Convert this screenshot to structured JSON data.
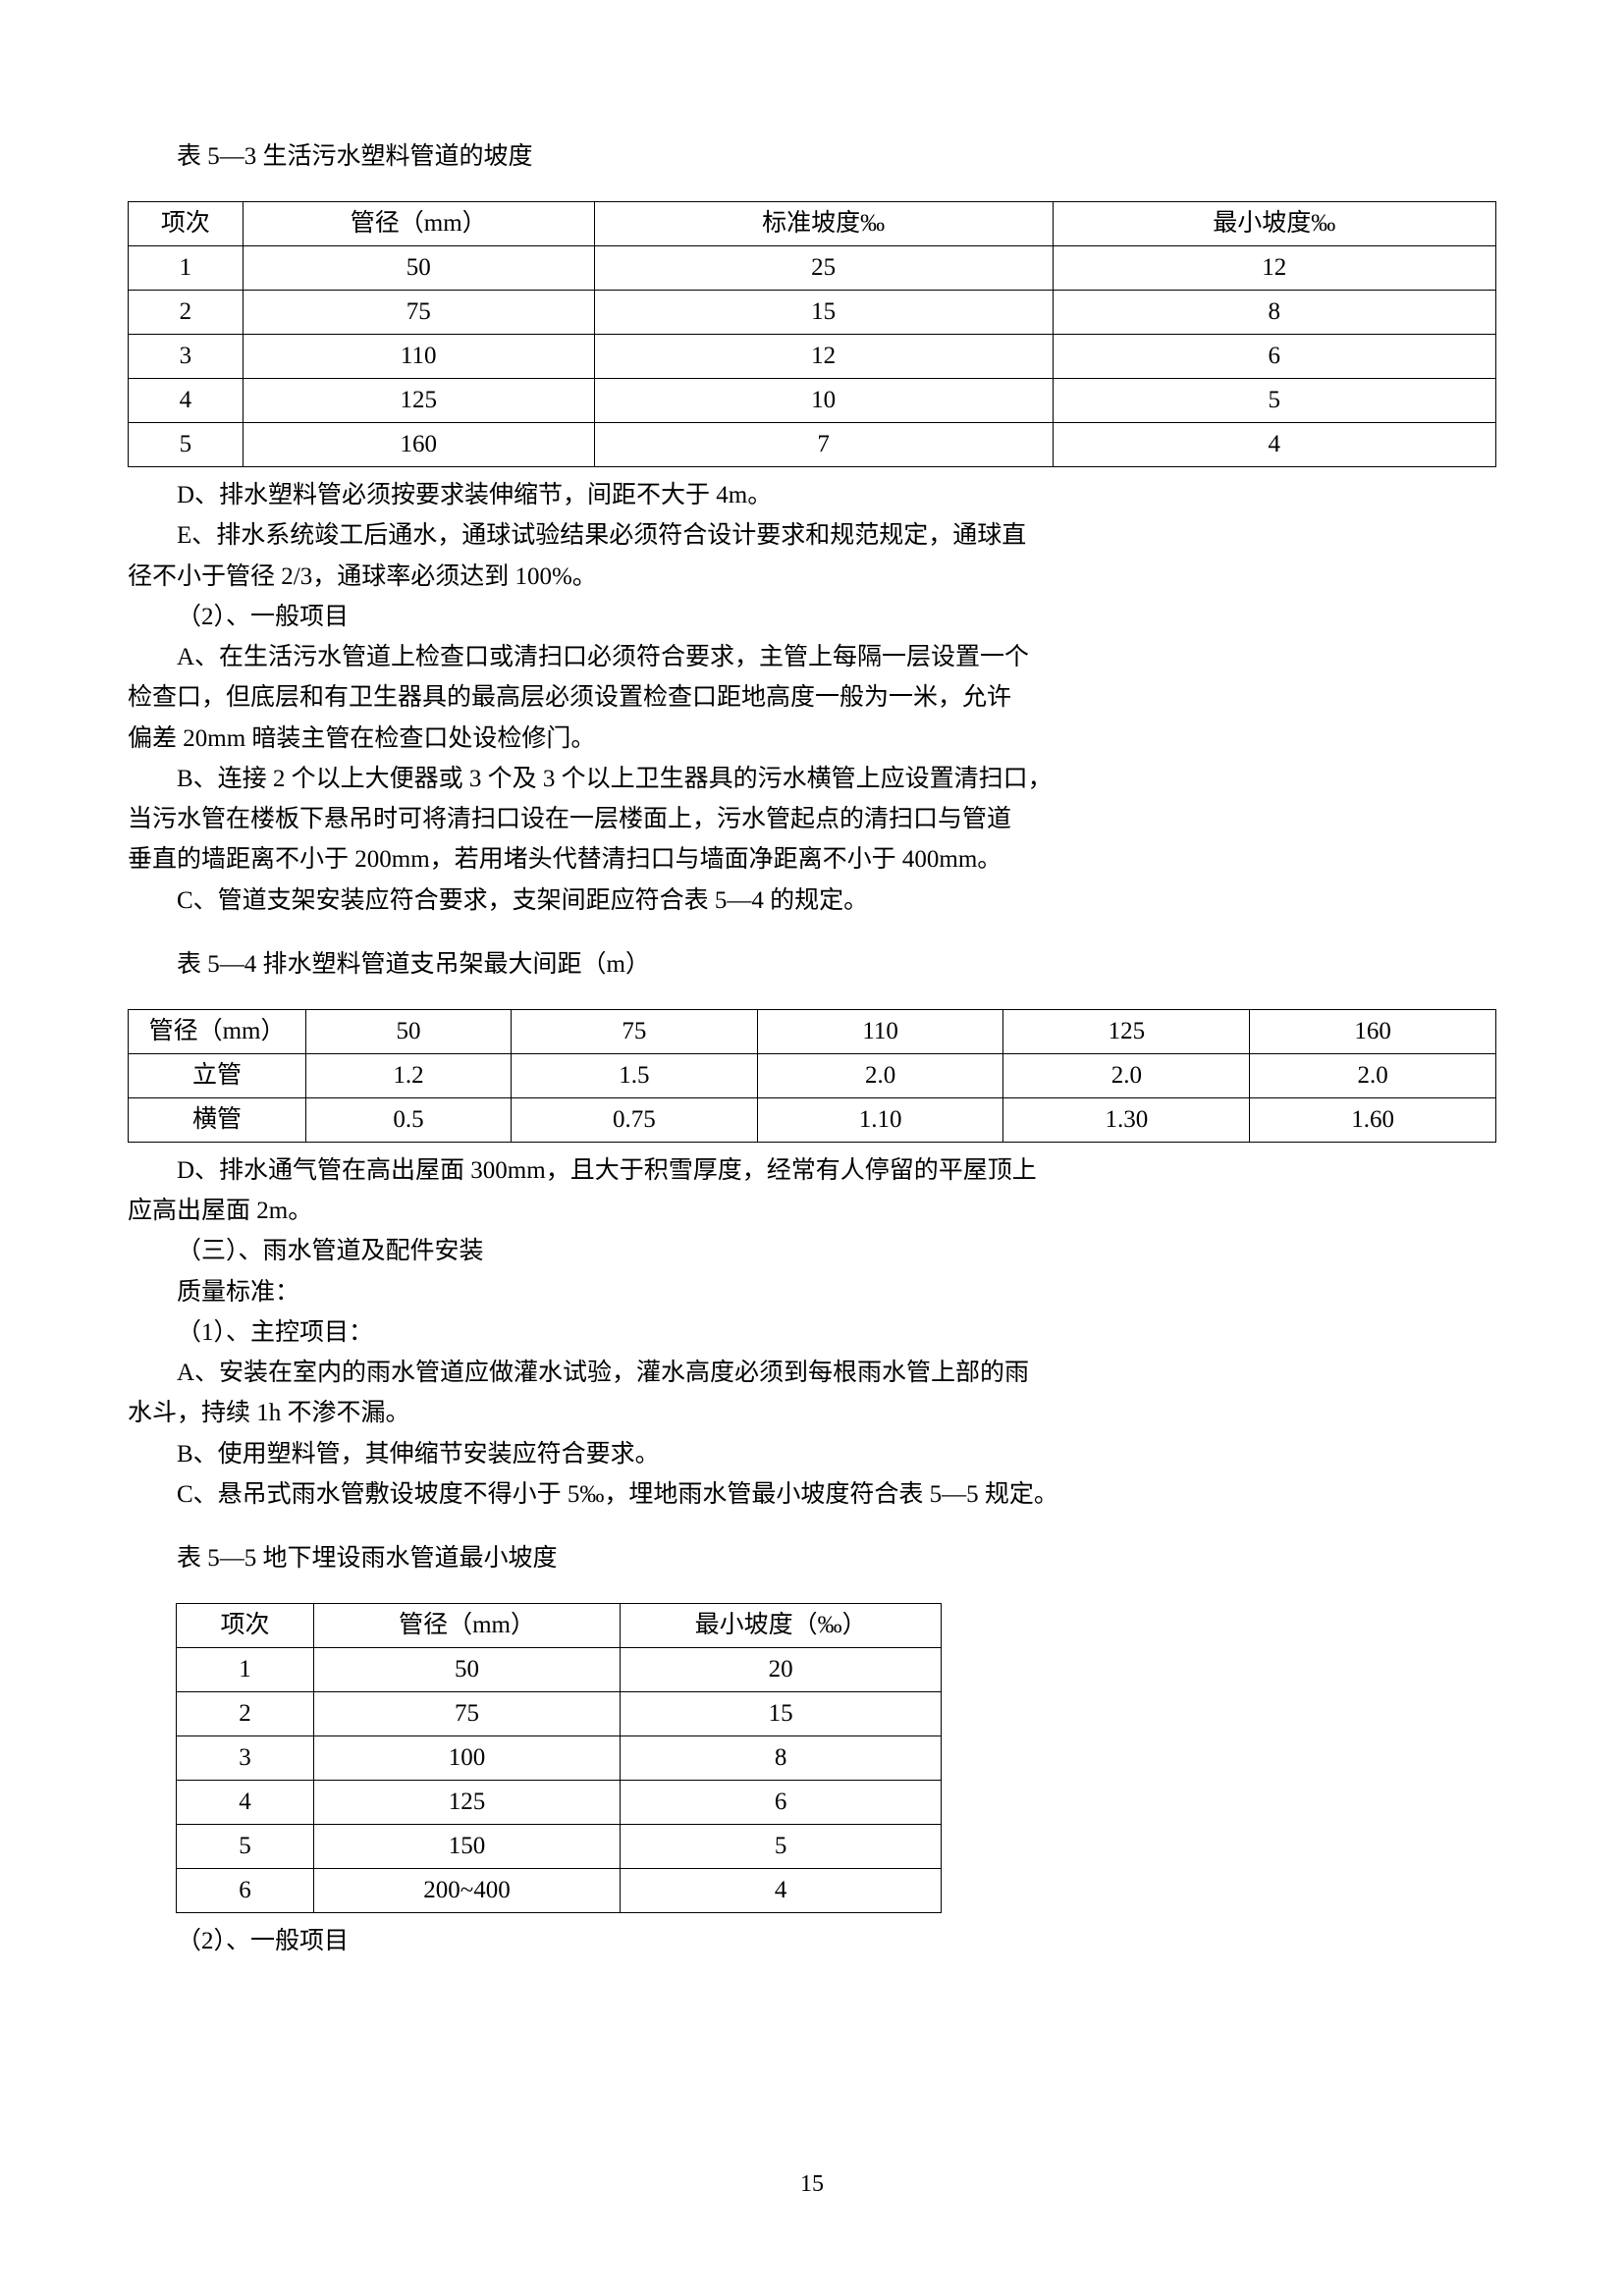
{
  "table53_caption": "表 5—3 生活污水塑料管道的坡度",
  "table53": {
    "headers": [
      "项次",
      "管径（mm）",
      "标准坡度‰",
      "最小坡度‰"
    ],
    "rows": [
      [
        "1",
        "50",
        "25",
        "12"
      ],
      [
        "2",
        "75",
        "15",
        "8"
      ],
      [
        "3",
        "110",
        "12",
        "6"
      ],
      [
        "4",
        "125",
        "10",
        "5"
      ],
      [
        "5",
        "160",
        "7",
        "4"
      ]
    ]
  },
  "para_d1": "D、排水塑料管必须按要求装伸缩节，间距不大于 4m。",
  "para_e1a": "E、排水系统竣工后通水，通球试验结果必须符合设计要求和规范规定，通球直",
  "para_e1b": "径不小于管径 2/3，通球率必须达到 100%。",
  "para_s2": "（2）、一般项目",
  "para_a1a": "A、在生活污水管道上检查口或清扫口必须符合要求，主管上每隔一层设置一个",
  "para_a1b": "检查口，但底层和有卫生器具的最高层必须设置检查口距地高度一般为一米，允许",
  "para_a1c": "偏差 20mm 暗装主管在检查口处设检修门。",
  "para_b1a": "B、连接 2 个以上大便器或 3 个及 3 个以上卫生器具的污水横管上应设置清扫口，",
  "para_b1b": "当污水管在楼板下悬吊时可将清扫口设在一层楼面上，污水管起点的清扫口与管道",
  "para_b1c": "垂直的墙距离不小于 200mm，若用堵头代替清扫口与墙面净距离不小于 400mm。",
  "para_c1": "C、管道支架安装应符合要求，支架间距应符合表 5—4 的规定。",
  "table54_caption": "表 5—4 排水塑料管道支吊架最大间距（m）",
  "table54": {
    "rows": [
      [
        "管径（mm）",
        "50",
        "75",
        "110",
        "125",
        "160"
      ],
      [
        "立管",
        "1.2",
        "1.5",
        "2.0",
        "2.0",
        "2.0"
      ],
      [
        "横管",
        "0.5",
        "0.75",
        "1.10",
        "1.30",
        "1.60"
      ]
    ]
  },
  "para_d2a": "D、排水通气管在高出屋面 300mm，且大于积雪厚度，经常有人停留的平屋顶上",
  "para_d2b": "应高出屋面 2m。",
  "para_sec3": "（三）、雨水管道及配件安装",
  "para_qual": "质量标准：",
  "para_s1": "（1）、主控项目：",
  "para_a2a": "A、安装在室内的雨水管道应做灌水试验，灌水高度必须到每根雨水管上部的雨",
  "para_a2b": "水斗，持续 1h 不渗不漏。",
  "para_b2": "B、使用塑料管，其伸缩节安装应符合要求。",
  "para_c2": "C、悬吊式雨水管敷设坡度不得小于 5‰，埋地雨水管最小坡度符合表 5—5 规定。",
  "table55_caption": "表 5—5 地下埋设雨水管道最小坡度",
  "table55": {
    "headers": [
      "项次",
      "管径（mm）",
      "最小坡度（‰）"
    ],
    "rows": [
      [
        "1",
        "50",
        "20"
      ],
      [
        "2",
        "75",
        "15"
      ],
      [
        "3",
        "100",
        "8"
      ],
      [
        "4",
        "125",
        "6"
      ],
      [
        "5",
        "150",
        "5"
      ],
      [
        "6",
        "200~400",
        "4"
      ]
    ]
  },
  "para_end": "（2）、一般项目",
  "page_number": "15"
}
